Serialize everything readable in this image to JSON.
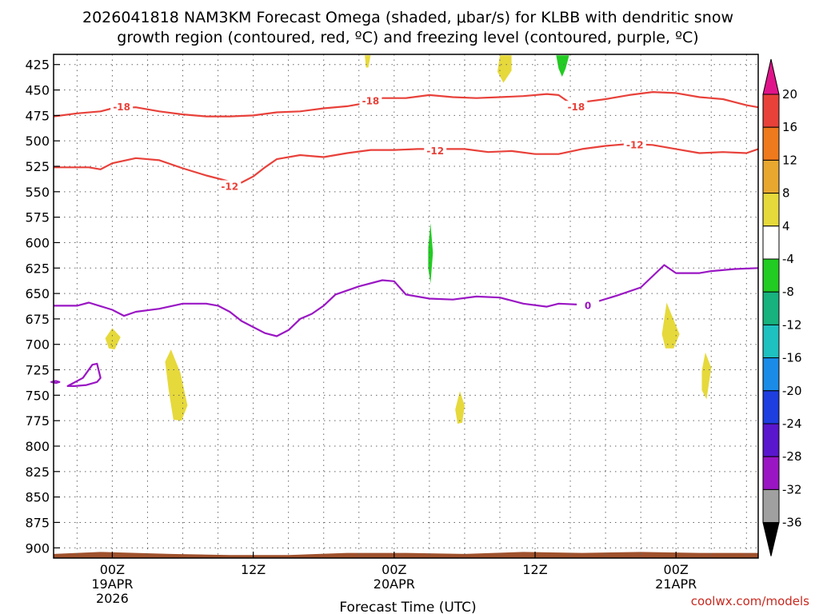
{
  "chart_data": {
    "type": "contour",
    "title_line1": "2026041818 NAM3KM Forecast Omega (shaded, μbar/s) for KLBB with dendritic snow",
    "title_line2": "growth region (contoured, red, ºC) and freezing level (contoured, purple, ºC)",
    "xlabel": "Forecast Time (UTC)",
    "credit": "coolwx.com/models",
    "x_range_hours": [
      -5,
      55
    ],
    "x_ticks": [
      {
        "hour": 0,
        "lines": [
          "00Z",
          "19APR",
          "2026"
        ]
      },
      {
        "hour": 12,
        "lines": [
          "12Z"
        ]
      },
      {
        "hour": 24,
        "lines": [
          "00Z",
          "20APR"
        ]
      },
      {
        "hour": 36,
        "lines": [
          "12Z"
        ]
      },
      {
        "hour": 48,
        "lines": [
          "00Z",
          "21APR"
        ]
      }
    ],
    "y_range_hpa": [
      415,
      910
    ],
    "y_ticks": [
      425,
      450,
      475,
      500,
      525,
      550,
      575,
      600,
      625,
      650,
      675,
      700,
      725,
      750,
      775,
      800,
      825,
      850,
      875,
      900
    ],
    "y_tick_labels": [
      "425",
      "450",
      "475",
      "500",
      "525",
      "550",
      "575",
      "600",
      "625",
      "650",
      "675",
      "700",
      "725",
      "750",
      "775",
      "800",
      "825",
      "850",
      "875",
      "900"
    ],
    "colorbar": {
      "labels": [
        "20",
        "16",
        "12",
        "8",
        "4",
        "-4",
        "-8",
        "-12",
        "-16",
        "-20",
        "-24",
        "-28",
        "-32",
        "-36"
      ],
      "colors": [
        "#e8413a",
        "#ef7a1d",
        "#e8a830",
        "#e6d93b",
        "#ffffff",
        "#22cc22",
        "#17b27e",
        "#1fc0c0",
        "#1a8ce8",
        "#1e3ee0",
        "#5a16cc",
        "#9a16c4",
        "#a0a0a0"
      ],
      "top_triangle": "#e0148a",
      "bottom_triangle": "#000000"
    },
    "contours": [
      {
        "name": "snow-growth-minus18",
        "color": "#e8413a",
        "label": "-18",
        "label_points": [
          [
            0.8,
            467
          ],
          [
            22,
            461
          ],
          [
            39.5,
            467
          ]
        ],
        "points": [
          [
            -5,
            476
          ],
          [
            -3,
            473
          ],
          [
            -1,
            471
          ],
          [
            0,
            468
          ],
          [
            2,
            467
          ],
          [
            4,
            471
          ],
          [
            6,
            474
          ],
          [
            8,
            476
          ],
          [
            10,
            476
          ],
          [
            12,
            475
          ],
          [
            14,
            472
          ],
          [
            16,
            471
          ],
          [
            18,
            468
          ],
          [
            20,
            466
          ],
          [
            22,
            462
          ],
          [
            23,
            458
          ],
          [
            25,
            458
          ],
          [
            27,
            455
          ],
          [
            29,
            457
          ],
          [
            31,
            458
          ],
          [
            33,
            457
          ],
          [
            35,
            456
          ],
          [
            37,
            454
          ],
          [
            38,
            455
          ],
          [
            39,
            463
          ],
          [
            40,
            462
          ],
          [
            42,
            459
          ],
          [
            44,
            455
          ],
          [
            46,
            452
          ],
          [
            48,
            453
          ],
          [
            50,
            457
          ],
          [
            52,
            459
          ],
          [
            54,
            465
          ],
          [
            55,
            467
          ]
        ]
      },
      {
        "name": "snow-growth-minus12",
        "color": "#e8413a",
        "label": "-12",
        "label_points": [
          [
            10,
            545
          ],
          [
            27.5,
            510
          ],
          [
            44.5,
            504
          ]
        ],
        "points": [
          [
            -5,
            526
          ],
          [
            -2,
            526
          ],
          [
            -1,
            528
          ],
          [
            0,
            522
          ],
          [
            2,
            517
          ],
          [
            4,
            519
          ],
          [
            6,
            527
          ],
          [
            8,
            534
          ],
          [
            10,
            540
          ],
          [
            11,
            541
          ],
          [
            12,
            535
          ],
          [
            13,
            526
          ],
          [
            14,
            518
          ],
          [
            16,
            514
          ],
          [
            18,
            516
          ],
          [
            20,
            512
          ],
          [
            22,
            509
          ],
          [
            24,
            509
          ],
          [
            26,
            508
          ],
          [
            28,
            508
          ],
          [
            30,
            508
          ],
          [
            32,
            511
          ],
          [
            34,
            510
          ],
          [
            36,
            513
          ],
          [
            38,
            513
          ],
          [
            40,
            508
          ],
          [
            42,
            505
          ],
          [
            44,
            503
          ],
          [
            46,
            504
          ],
          [
            48,
            508
          ],
          [
            50,
            512
          ],
          [
            52,
            511
          ],
          [
            54,
            512
          ],
          [
            55,
            508
          ]
        ]
      },
      {
        "name": "freezing-level-0",
        "color": "#9a16c4",
        "label": "0",
        "label_points": [
          [
            40.5,
            662
          ]
        ],
        "points": [
          [
            -5,
            662
          ],
          [
            -3,
            662
          ],
          [
            -2,
            659
          ],
          [
            0,
            666
          ],
          [
            1,
            672
          ],
          [
            2,
            668
          ],
          [
            4,
            665
          ],
          [
            6,
            660
          ],
          [
            8,
            660
          ],
          [
            9,
            662
          ],
          [
            10,
            668
          ],
          [
            11,
            677
          ],
          [
            12,
            683
          ],
          [
            13,
            689
          ],
          [
            14,
            692
          ],
          [
            15,
            686
          ],
          [
            16,
            675
          ],
          [
            17,
            670
          ],
          [
            18,
            662
          ],
          [
            19,
            651
          ],
          [
            21,
            643
          ],
          [
            23,
            637
          ],
          [
            24,
            638
          ],
          [
            25,
            651
          ],
          [
            27,
            655
          ],
          [
            29,
            656
          ],
          [
            31,
            653
          ],
          [
            33,
            654
          ],
          [
            35,
            660
          ],
          [
            37,
            663
          ],
          [
            38,
            660
          ],
          [
            40,
            661
          ],
          [
            41,
            659
          ],
          [
            43,
            652
          ],
          [
            45,
            644
          ],
          [
            46,
            633
          ],
          [
            47,
            622
          ],
          [
            48,
            630
          ],
          [
            50,
            630
          ],
          [
            51,
            628
          ],
          [
            53,
            626
          ],
          [
            55,
            625
          ]
        ]
      },
      {
        "name": "freezing-level-loop",
        "color": "#9a16c4",
        "label": "",
        "label_points": [],
        "closed": true,
        "points": [
          [
            -3.8,
            741
          ],
          [
            -2.5,
            733
          ],
          [
            -1.7,
            720
          ],
          [
            -1.3,
            719
          ],
          [
            -1,
            733
          ],
          [
            -1.3,
            737
          ],
          [
            -2.2,
            740
          ],
          [
            -3.2,
            741
          ]
        ]
      },
      {
        "name": "freezing-level-small-loop",
        "color": "#9a16c4",
        "label": "",
        "label_points": [],
        "closed": true,
        "points": [
          [
            -5.2,
            737
          ],
          [
            -4.8,
            736
          ],
          [
            -4.5,
            737
          ],
          [
            -4.8,
            738
          ]
        ]
      }
    ],
    "omega_patches": [
      {
        "name": "yellow-patch-1",
        "color": "#e6d93b",
        "points": [
          [
            -0.6,
            694
          ],
          [
            0,
            684
          ],
          [
            0.7,
            693
          ],
          [
            0.2,
            705
          ],
          [
            -0.3,
            704
          ]
        ]
      },
      {
        "name": "yellow-patch-2",
        "color": "#e6d93b",
        "points": [
          [
            4.5,
            717
          ],
          [
            5,
            705
          ],
          [
            5.8,
            728
          ],
          [
            6.4,
            760
          ],
          [
            5.9,
            775
          ],
          [
            5.2,
            774
          ],
          [
            4.8,
            745
          ]
        ]
      },
      {
        "name": "yellow-patch-3",
        "color": "#e6d93b",
        "points": [
          [
            29.2,
            764
          ],
          [
            29.6,
            746
          ],
          [
            30.0,
            760
          ],
          [
            29.8,
            777
          ],
          [
            29.4,
            778
          ]
        ]
      },
      {
        "name": "yellow-patch-4",
        "color": "#e6d93b",
        "points": [
          [
            46.8,
            690
          ],
          [
            47.2,
            659
          ],
          [
            48.3,
            690
          ],
          [
            47.8,
            704
          ],
          [
            47.1,
            704
          ]
        ]
      },
      {
        "name": "yellow-patch-5",
        "color": "#e6d93b",
        "points": [
          [
            50.2,
            726
          ],
          [
            50.5,
            708
          ],
          [
            51.0,
            723
          ],
          [
            50.6,
            754
          ],
          [
            50.2,
            745
          ]
        ]
      },
      {
        "name": "yellow-patch-6",
        "color": "#e6d93b",
        "points": [
          [
            21.5,
            416
          ],
          [
            22.0,
            416
          ],
          [
            21.8,
            428
          ],
          [
            21.6,
            428
          ]
        ]
      },
      {
        "name": "yellow-patch-7",
        "color": "#e6d93b",
        "points": [
          [
            33.0,
            416
          ],
          [
            34.0,
            416
          ],
          [
            34.0,
            431
          ],
          [
            33.3,
            443
          ],
          [
            32.8,
            432
          ]
        ]
      },
      {
        "name": "green-patch-1",
        "color": "#22cc22",
        "points": [
          [
            37.8,
            416
          ],
          [
            38.9,
            416
          ],
          [
            38.6,
            429
          ],
          [
            38.3,
            437
          ],
          [
            38.0,
            429
          ]
        ]
      },
      {
        "name": "green-patch-2",
        "color": "#22cc22",
        "points": [
          [
            26.9,
            605
          ],
          [
            27.1,
            581
          ],
          [
            27.3,
            610
          ],
          [
            27.1,
            640
          ],
          [
            26.9,
            625
          ]
        ]
      }
    ],
    "terrain": {
      "color": "#a0522d",
      "top_hpa": 906,
      "x_hours": [
        -5,
        -3,
        -1,
        2,
        5,
        10,
        15,
        20,
        25,
        30,
        35,
        40,
        45,
        50,
        55
      ],
      "top_hpa_series": [
        906,
        905,
        904,
        905,
        906,
        907,
        907,
        905,
        905,
        906,
        904,
        905,
        904,
        905,
        905
      ]
    }
  }
}
